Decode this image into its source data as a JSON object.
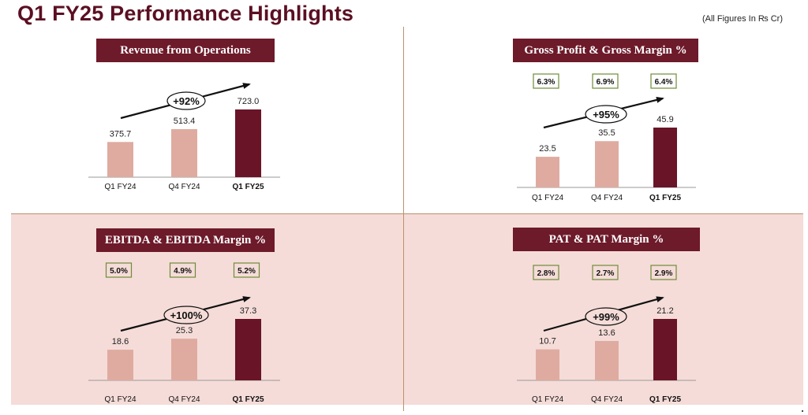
{
  "page": {
    "title": "Q1 FY25 Performance Highlights",
    "note": "(All Figures In ₨ Cr)"
  },
  "colors": {
    "bar_prior": "#dfaba0",
    "bar_current": "#6a1428",
    "header_bg": "#6d1a2a",
    "margin_border": "#6f8b3a"
  },
  "chart_data": [
    {
      "type": "bar",
      "title": "Revenue from Operations",
      "categories": [
        "Q1 FY24",
        "Q4 FY24",
        "Q1 FY25"
      ],
      "values": [
        375.7,
        513.4,
        723.0
      ],
      "value_labels": [
        "375.7",
        "513.4",
        "723.0"
      ],
      "growth": "+92%",
      "margins": [],
      "ylim": [
        0,
        723.0
      ]
    },
    {
      "type": "bar",
      "title": "Gross Profit & Gross Margin %",
      "categories": [
        "Q1 FY24",
        "Q4 FY24",
        "Q1 FY25"
      ],
      "values": [
        23.5,
        35.5,
        45.9
      ],
      "value_labels": [
        "23.5",
        "35.5",
        "45.9"
      ],
      "growth": "+95%",
      "margins": [
        "6.3%",
        "6.9%",
        "6.4%"
      ],
      "ylim": [
        0,
        45.9
      ]
    },
    {
      "type": "bar",
      "title": "EBITDA & EBITDA Margin %",
      "categories": [
        "Q1 FY24",
        "Q4 FY24",
        "Q1 FY25"
      ],
      "values": [
        18.6,
        25.3,
        37.3
      ],
      "value_labels": [
        "18.6",
        "25.3",
        "37.3"
      ],
      "growth": "+100%",
      "margins": [
        "5.0%",
        "4.9%",
        "5.2%"
      ],
      "ylim": [
        0,
        37.3
      ]
    },
    {
      "type": "bar",
      "title": "PAT & PAT Margin %",
      "categories": [
        "Q1 FY24",
        "Q4 FY24",
        "Q1 FY25"
      ],
      "values": [
        10.7,
        13.6,
        21.2
      ],
      "value_labels": [
        "10.7",
        "13.6",
        "21.2"
      ],
      "growth": "+99%",
      "margins": [
        "2.8%",
        "2.7%",
        "2.9%"
      ],
      "ylim": [
        0,
        21.2
      ]
    }
  ]
}
